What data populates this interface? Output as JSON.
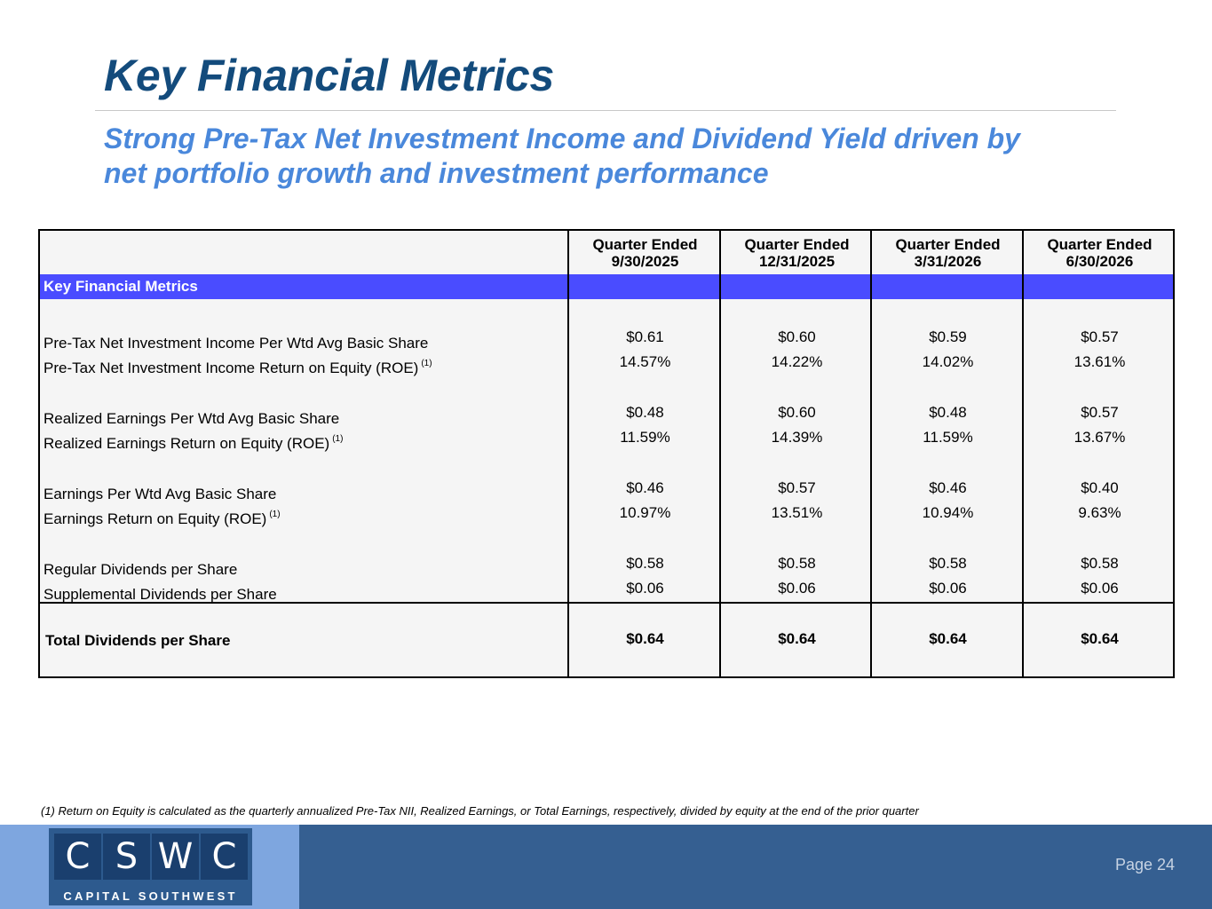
{
  "slide": {
    "title": "Key Financial Metrics",
    "subtitle_lines": [
      "Strong Pre-Tax Net Investment Income and Dividend Yield driven by",
      "net portfolio growth and investment performance"
    ]
  },
  "table": {
    "columns": [
      {
        "line1": "Quarter Ended",
        "line2": "9/30/2025"
      },
      {
        "line1": "Quarter Ended",
        "line2": "12/31/2025"
      },
      {
        "line1": "Quarter Ended",
        "line2": "3/31/2026"
      },
      {
        "line1": "Quarter Ended",
        "line2": "6/30/2026"
      }
    ],
    "section_label": "Key Financial Metrics",
    "rows": [
      {
        "label": "Pre-Tax Net Investment Income Per Wtd Avg Basic Share",
        "sup": "",
        "values": [
          "$0.61",
          "$0.60",
          "$0.59",
          "$0.57"
        ]
      },
      {
        "label": "Pre-Tax Net Investment Income Return on Equity (ROE)",
        "sup": "(1)",
        "values": [
          "14.57%",
          "14.22%",
          "14.02%",
          "13.61%"
        ]
      },
      {
        "label": "Realized Earnings Per Wtd Avg Basic Share",
        "sup": "",
        "values": [
          "$0.48",
          "$0.60",
          "$0.48",
          "$0.57"
        ]
      },
      {
        "label": "Realized Earnings Return on Equity (ROE)",
        "sup": "(1)",
        "values": [
          "11.59%",
          "14.39%",
          "11.59%",
          "13.67%"
        ]
      },
      {
        "label": "Earnings Per Wtd Avg Basic Share",
        "sup": "",
        "values": [
          "$0.46",
          "$0.57",
          "$0.46",
          "$0.40"
        ]
      },
      {
        "label": "Earnings Return on Equity (ROE)",
        "sup": "(1)",
        "values": [
          "10.97%",
          "13.51%",
          "10.94%",
          "9.63%"
        ]
      },
      {
        "label": "Regular Dividends per Share",
        "sup": "",
        "values": [
          "$0.58",
          "$0.58",
          "$0.58",
          "$0.58"
        ]
      },
      {
        "label": "Supplemental Dividends per Share",
        "sup": "",
        "values": [
          "$0.06",
          "$0.06",
          "$0.06",
          "$0.06"
        ]
      }
    ],
    "total": {
      "label": "Total Dividends per Share",
      "values": [
        "$0.64",
        "$0.64",
        "$0.64",
        "$0.64"
      ]
    }
  },
  "footnote": "(1)  Return on Equity is calculated as the quarterly annualized Pre-Tax NII, Realized Earnings, or Total Earnings, respectively, divided by equity at the end of the prior quarter",
  "footer": {
    "logo_letters": [
      "C",
      "S",
      "W",
      "C"
    ],
    "logo_subtitle": "CAPITAL SOUTHWEST",
    "page_label": "Page 24"
  },
  "colors": {
    "title": "#134b7c",
    "subtitle": "#4a88db",
    "section_band": "#4a4cff",
    "footer_dark": "#355f91",
    "footer_light": "#7ea6df"
  }
}
